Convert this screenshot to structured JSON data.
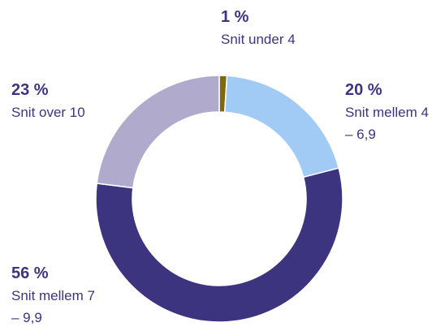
{
  "chart_data": {
    "type": "donut",
    "categories": [
      "Snit under 4",
      "Snit mellem 4 – 6,9",
      "Snit mellem 7 – 9,9",
      "Snit over 10"
    ],
    "values": [
      1,
      20,
      56,
      23
    ],
    "value_labels": [
      "1 %",
      "20 %",
      "56 %",
      "23 %"
    ],
    "colors": [
      "#7d6a0c",
      "#a1cbf5",
      "#3d3480",
      "#b0abcd"
    ]
  }
}
